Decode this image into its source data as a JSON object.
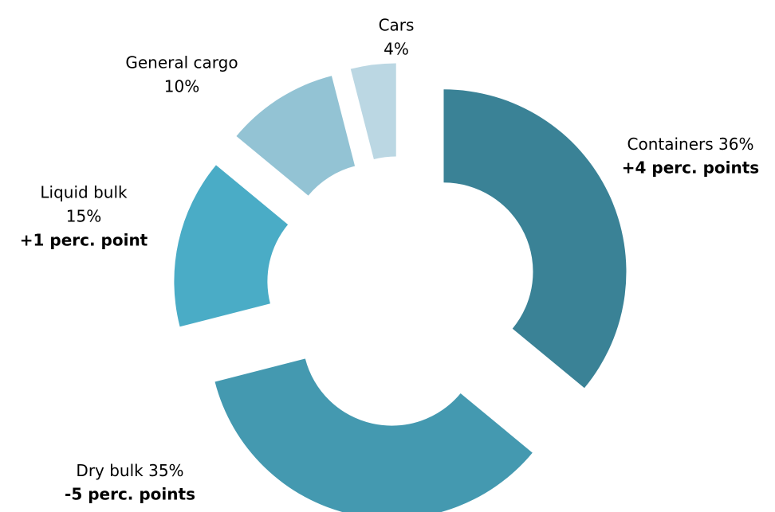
{
  "chart_data": {
    "type": "donut",
    "categories": [
      "Containers",
      "Dry bulk",
      "Liquid bulk",
      "General cargo",
      "Cars"
    ],
    "values": [
      36,
      35,
      15,
      10,
      4
    ],
    "value_labels": [
      "36%",
      "35%",
      "15%",
      "10%",
      "4%"
    ],
    "changes": [
      "+4 perc. points",
      "-5 perc. points",
      "+1 perc. point",
      null,
      null
    ],
    "colors": [
      "#3a8296",
      "#4499b0",
      "#4aacc6",
      "#93c3d4",
      "#bbd7e3"
    ]
  }
}
